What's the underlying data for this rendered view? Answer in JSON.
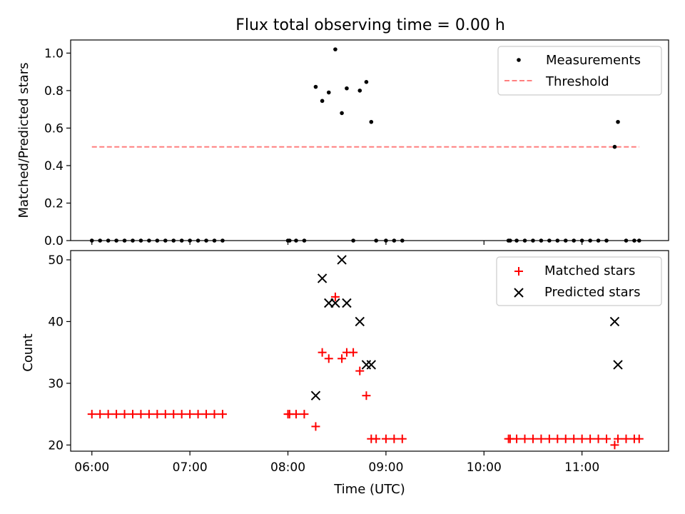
{
  "chart_data": [
    {
      "type": "scatter",
      "title": "Flux total observing time = 0.00 h",
      "xlabel": "",
      "ylabel": "Matched/Predicted stars",
      "xlim": [
        "05:47",
        "11:53"
      ],
      "ylim": [
        0,
        1.07
      ],
      "yticks": [
        0.0,
        0.2,
        0.4,
        0.6,
        0.8,
        1.0
      ],
      "ytick_labels": [
        "0.0",
        "0.2",
        "0.4",
        "0.6",
        "0.8",
        "1.0"
      ],
      "grid": false,
      "legend_position": "top-right",
      "series": [
        {
          "name": "Measurements",
          "color": "#000000",
          "marker": "dot",
          "x": [
            "06:00",
            "06:05",
            "06:10",
            "06:15",
            "06:20",
            "06:25",
            "06:30",
            "06:35",
            "06:40",
            "06:45",
            "06:50",
            "06:55",
            "07:00",
            "07:05",
            "07:10",
            "07:15",
            "07:20",
            "08:00",
            "08:01",
            "08:05",
            "08:10",
            "08:17",
            "08:21",
            "08:25",
            "08:29",
            "08:33",
            "08:36",
            "08:40",
            "08:44",
            "08:48",
            "08:51",
            "08:54",
            "09:00",
            "09:05",
            "09:10",
            "10:15",
            "10:16",
            "10:20",
            "10:25",
            "10:30",
            "10:35",
            "10:40",
            "10:45",
            "10:50",
            "10:55",
            "11:00",
            "11:05",
            "11:10",
            "11:15",
            "11:20",
            "11:22",
            "11:27",
            "11:32",
            "11:35"
          ],
          "y": [
            0,
            0,
            0,
            0,
            0,
            0,
            0,
            0,
            0,
            0,
            0,
            0,
            0,
            0,
            0,
            0,
            0,
            0,
            0,
            0,
            0,
            0.82,
            0.745,
            0.79,
            1.02,
            0.68,
            0.812,
            0,
            0.8,
            0.846,
            0.633,
            0,
            0,
            0,
            0,
            0,
            0,
            0,
            0,
            0,
            0,
            0,
            0,
            0,
            0,
            0,
            0,
            0,
            0,
            0.5,
            0.633,
            0,
            0,
            0
          ]
        },
        {
          "name": "Threshold",
          "color": "#ff7f7f",
          "style": "dashed",
          "x": [
            "06:00",
            "11:35"
          ],
          "y": [
            0.5,
            0.5
          ]
        }
      ]
    },
    {
      "type": "scatter",
      "title": "",
      "xlabel": "Time (UTC)",
      "ylabel": "Count",
      "xlim": [
        "05:47",
        "11:53"
      ],
      "ylim": [
        19,
        51.5
      ],
      "yticks": [
        20,
        30,
        40,
        50
      ],
      "ytick_labels": [
        "20",
        "30",
        "40",
        "50"
      ],
      "xticks": [
        "06:00",
        "07:00",
        "08:00",
        "09:00",
        "10:00",
        "11:00"
      ],
      "grid": false,
      "legend_position": "top-right",
      "series": [
        {
          "name": "Matched stars",
          "color": "#ff0000",
          "marker": "plus",
          "x": [
            "06:00",
            "06:05",
            "06:10",
            "06:15",
            "06:20",
            "06:25",
            "06:30",
            "06:35",
            "06:40",
            "06:45",
            "06:50",
            "06:55",
            "07:00",
            "07:05",
            "07:10",
            "07:15",
            "07:20",
            "08:00",
            "08:01",
            "08:05",
            "08:10",
            "08:17",
            "08:21",
            "08:25",
            "08:29",
            "08:33",
            "08:36",
            "08:40",
            "08:44",
            "08:48",
            "08:51",
            "08:54",
            "09:00",
            "09:05",
            "09:10",
            "10:15",
            "10:16",
            "10:20",
            "10:25",
            "10:30",
            "10:35",
            "10:40",
            "10:45",
            "10:50",
            "10:55",
            "11:00",
            "11:05",
            "11:10",
            "11:15",
            "11:20",
            "11:22",
            "11:27",
            "11:32",
            "11:35"
          ],
          "y": [
            25,
            25,
            25,
            25,
            25,
            25,
            25,
            25,
            25,
            25,
            25,
            25,
            25,
            25,
            25,
            25,
            25,
            25,
            25,
            25,
            25,
            23,
            35,
            34,
            44,
            34,
            35,
            35,
            32,
            28,
            21,
            21,
            21,
            21,
            21,
            21,
            21,
            21,
            21,
            21,
            21,
            21,
            21,
            21,
            21,
            21,
            21,
            21,
            21,
            20,
            21,
            21,
            21,
            21
          ]
        },
        {
          "name": "Predicted stars",
          "color": "#000000",
          "marker": "x",
          "x": [
            "08:17",
            "08:21",
            "08:25",
            "08:29",
            "08:33",
            "08:36",
            "08:44",
            "08:48",
            "08:51",
            "11:20",
            "11:22"
          ],
          "y": [
            28,
            47,
            43,
            43,
            50,
            43,
            40,
            33,
            33,
            40,
            33
          ]
        }
      ]
    }
  ]
}
